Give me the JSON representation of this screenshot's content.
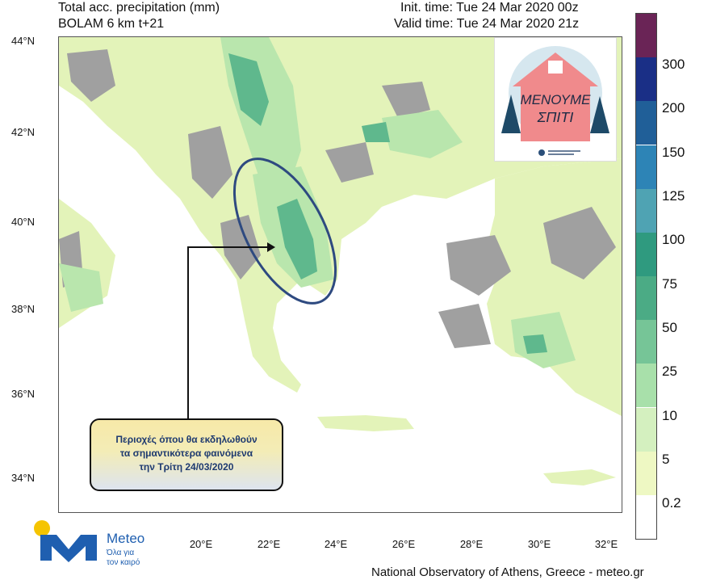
{
  "header": {
    "title_line1": "Total acc. precipitation (mm)",
    "title_line2": "BOLAM 6 km t+21",
    "init_time": "Init. time: Tue 24 Mar 2020 00z",
    "valid_time": "Valid time: Tue 24 Mar 2020 21z"
  },
  "axes": {
    "lat_labels": [
      "44°N",
      "42°N",
      "40°N",
      "38°N",
      "36°N",
      "34°N"
    ],
    "lon_labels": [
      "20°E",
      "22°E",
      "24°E",
      "26°E",
      "28°E",
      "30°E",
      "32°E"
    ]
  },
  "colorbar": {
    "labels": [
      "300",
      "200",
      "150",
      "125",
      "100",
      "75",
      "50",
      "25",
      "10",
      "5",
      "0.2"
    ],
    "colors": [
      "#6a2456",
      "#1a2f86",
      "#205f98",
      "#2d84b6",
      "#4fa3b3",
      "#2f9a7f",
      "#4bab85",
      "#76c597",
      "#a8e0aa",
      "#d4f0bf",
      "#eef8c3",
      "#ffffff"
    ]
  },
  "logo": {
    "slogan_line1": "ΜΕΝΟΥΜΕ",
    "slogan_line2": "ΣΠΙΤΙ"
  },
  "callout": {
    "line1": "Περιοχές όπου θα εκδηλωθούν",
    "line2": "τα σημαντικότερα φαινόμενα",
    "line3": "την Τρίτη 24/03/2020"
  },
  "brand": {
    "name": "Meteo",
    "tagline1": "Όλα για",
    "tagline2": "τον καιρό"
  },
  "footer": {
    "credits": "National Observatory of Athens, Greece - meteo.gr"
  },
  "colors": {
    "sea": "#ffffff",
    "land_dry": "#a0a0a0",
    "precip_light": "#e3f3b9",
    "precip_mid": "#b9e6ad",
    "precip_heavy": "#5fb88d",
    "highlight_ellipse": "#2e4a80",
    "brand_blue": "#1f5fb0",
    "brand_yellow": "#f5c400"
  }
}
